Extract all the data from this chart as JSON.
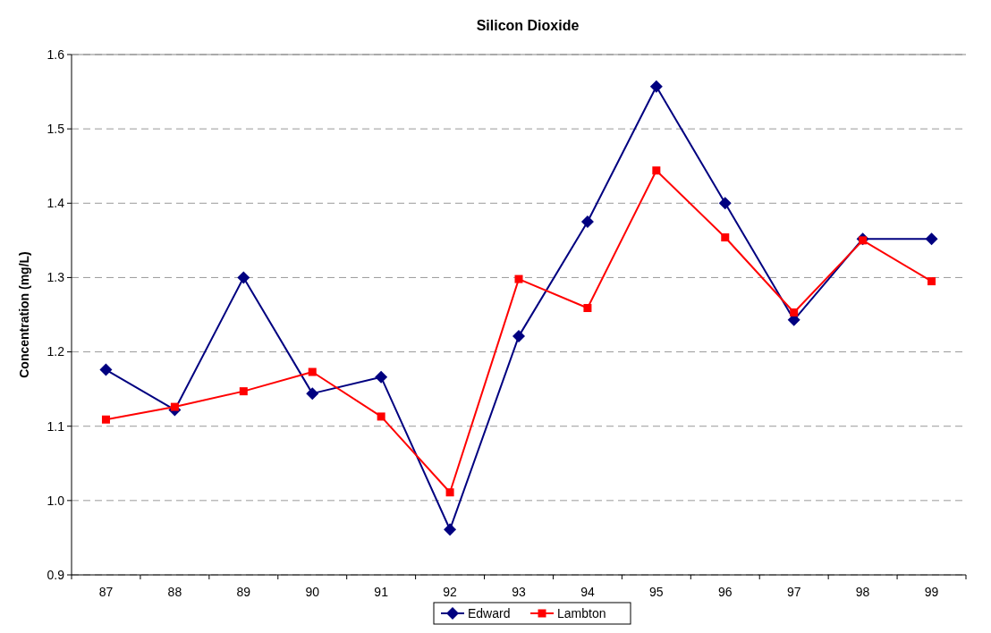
{
  "chart_data": {
    "type": "line",
    "title": "Silicon Dioxide",
    "ylabel": "Concentration (mg/L)",
    "categories": [
      "87",
      "88",
      "89",
      "90",
      "91",
      "92",
      "93",
      "94",
      "95",
      "96",
      "97",
      "98",
      "99"
    ],
    "series": [
      {
        "name": "Edward",
        "color": "#000080",
        "marker": "diamond",
        "values": [
          1.176,
          1.122,
          1.3,
          1.144,
          1.166,
          0.961,
          1.221,
          1.375,
          1.557,
          1.4,
          1.243,
          1.352,
          1.352
        ]
      },
      {
        "name": "Lambton",
        "color": "#ff0000",
        "marker": "square",
        "values": [
          1.109,
          1.126,
          1.147,
          1.173,
          1.113,
          1.011,
          1.298,
          1.259,
          1.444,
          1.354,
          1.253,
          1.35,
          1.295
        ]
      }
    ],
    "ylim": [
      0.9,
      1.6
    ],
    "yticks": [
      {
        "value": 0.9,
        "label": "0.9"
      },
      {
        "value": 1.0,
        "label": "1.0"
      },
      {
        "value": 1.1,
        "label": "1.1"
      },
      {
        "value": 1.2,
        "label": "1.2"
      },
      {
        "value": 1.3,
        "label": "1.3"
      },
      {
        "value": 1.4,
        "label": "1.4"
      },
      {
        "value": 1.5,
        "label": "1.5"
      },
      {
        "value": 1.6,
        "label": "1.6"
      }
    ],
    "grid": "y",
    "legend": "bottom"
  }
}
